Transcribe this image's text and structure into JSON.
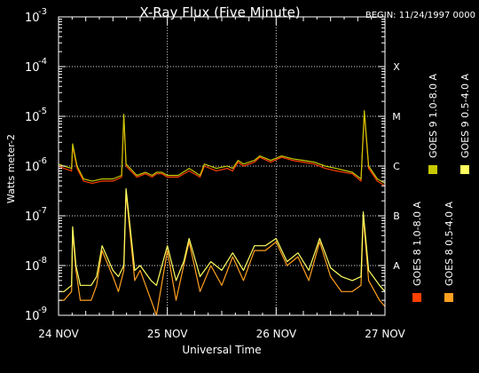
{
  "chart_data": {
    "type": "line",
    "title": "X-Ray Flux (Five Minute)",
    "begin_label": "BEGIN: 11/24/1997 0000",
    "xlabel": "Universal Time",
    "ylabel": "Watts meter-2",
    "x_ticks": [
      "24 NOV",
      "25 NOV",
      "26 NOV",
      "27 NOV"
    ],
    "x_range_days": [
      0,
      3
    ],
    "y_scale": "log",
    "ylim": [
      1e-09,
      0.001
    ],
    "y_tick_labels": [
      {
        "base": "10",
        "exp": "-9"
      },
      {
        "base": "10",
        "exp": "-8"
      },
      {
        "base": "10",
        "exp": "-7"
      },
      {
        "base": "10",
        "exp": "-6"
      },
      {
        "base": "10",
        "exp": "-5"
      },
      {
        "base": "10",
        "exp": "-4"
      },
      {
        "base": "10",
        "exp": "-3"
      }
    ],
    "flare_classes": [
      {
        "label": "A",
        "flux": 1e-08
      },
      {
        "label": "B",
        "flux": 1e-07
      },
      {
        "label": "C",
        "flux": 1e-06
      },
      {
        "label": "M",
        "flux": 1e-05
      },
      {
        "label": "X",
        "flux": 0.0001
      }
    ],
    "grid": true,
    "legend_position": "right, vertical",
    "series": [
      {
        "name": "GOES 8 1.0-8.0 A",
        "color": "#ff4000",
        "band": "long",
        "x": [
          0,
          0.05,
          0.12,
          0.13,
          0.17,
          0.23,
          0.31,
          0.4,
          0.5,
          0.58,
          0.6,
          0.62,
          0.72,
          0.8,
          0.86,
          0.9,
          0.95,
          1.0,
          1.05,
          1.1,
          1.2,
          1.3,
          1.34,
          1.45,
          1.55,
          1.6,
          1.65,
          1.7,
          1.8,
          1.85,
          1.95,
          2.05,
          2.15,
          2.25,
          2.35,
          2.45,
          2.55,
          2.7,
          2.78,
          2.81,
          2.85,
          2.93,
          3.0
        ],
        "y": [
          1e-06,
          9e-07,
          8e-07,
          2.5e-06,
          9e-07,
          5e-07,
          4.5e-07,
          5e-07,
          5e-07,
          6e-07,
          1e-05,
          1e-06,
          6e-07,
          7e-07,
          6e-07,
          7e-07,
          7e-07,
          6e-07,
          6e-07,
          6e-07,
          8e-07,
          6e-07,
          1e-06,
          8e-07,
          9e-07,
          8e-07,
          1.2e-06,
          1e-06,
          1.2e-06,
          1.5e-06,
          1.2e-06,
          1.5e-06,
          1.3e-06,
          1.2e-06,
          1.1e-06,
          9e-07,
          8e-07,
          7e-07,
          5e-07,
          1.2e-05,
          9e-07,
          5e-07,
          4e-07
        ]
      },
      {
        "name": "GOES 8 0.5-4.0 A",
        "color": "#ffa020",
        "band": "short",
        "x": [
          0,
          0.05,
          0.12,
          0.13,
          0.16,
          0.2,
          0.3,
          0.35,
          0.4,
          0.5,
          0.55,
          0.6,
          0.62,
          0.7,
          0.75,
          0.85,
          0.9,
          1.0,
          1.08,
          1.15,
          1.2,
          1.3,
          1.4,
          1.5,
          1.6,
          1.7,
          1.8,
          1.9,
          2.0,
          2.1,
          2.2,
          2.3,
          2.4,
          2.5,
          2.6,
          2.7,
          2.78,
          2.8,
          2.85,
          2.95,
          3.0
        ],
        "y": [
          2e-09,
          2e-09,
          3e-09,
          5e-08,
          8e-09,
          2e-09,
          2e-09,
          4e-09,
          2e-08,
          6e-09,
          3e-09,
          8e-09,
          3e-07,
          5e-09,
          8e-09,
          2e-09,
          1e-09,
          2e-08,
          2e-09,
          1e-08,
          3e-08,
          3e-09,
          1e-08,
          4e-09,
          1.5e-08,
          5e-09,
          2e-08,
          2e-08,
          3e-08,
          1e-08,
          1.5e-08,
          5e-09,
          3e-08,
          6e-09,
          3e-09,
          3e-09,
          4e-09,
          1e-07,
          5e-09,
          2e-09,
          1.5e-09
        ]
      },
      {
        "name": "GOES 9 1.0-8.0 A",
        "color": "#c8c800",
        "band": "long",
        "x": [
          0,
          0.05,
          0.12,
          0.13,
          0.17,
          0.23,
          0.31,
          0.4,
          0.5,
          0.58,
          0.6,
          0.62,
          0.72,
          0.8,
          0.86,
          0.9,
          0.95,
          1.0,
          1.05,
          1.1,
          1.2,
          1.3,
          1.34,
          1.45,
          1.55,
          1.6,
          1.65,
          1.7,
          1.8,
          1.85,
          1.95,
          2.05,
          2.15,
          2.25,
          2.35,
          2.45,
          2.55,
          2.7,
          2.78,
          2.81,
          2.85,
          2.93,
          3.0
        ],
        "y": [
          1.1e-06,
          1e-06,
          9e-07,
          2.8e-06,
          1e-06,
          5.5e-07,
          5e-07,
          5.5e-07,
          5.5e-07,
          6.5e-07,
          1.1e-05,
          1.1e-06,
          6.5e-07,
          7.5e-07,
          6.5e-07,
          7.5e-07,
          7.5e-07,
          6.5e-07,
          6.5e-07,
          6.5e-07,
          9e-07,
          6.5e-07,
          1.1e-06,
          9e-07,
          1e-06,
          9e-07,
          1.3e-06,
          1.1e-06,
          1.3e-06,
          1.6e-06,
          1.3e-06,
          1.6e-06,
          1.4e-06,
          1.3e-06,
          1.2e-06,
          1e-06,
          9e-07,
          7.5e-07,
          5.5e-07,
          1.3e-05,
          1e-06,
          5.5e-07,
          4.5e-07
        ]
      },
      {
        "name": "GOES 9 0.5-4.0 A",
        "color": "#ffff60",
        "band": "short",
        "x": [
          0,
          0.05,
          0.12,
          0.13,
          0.16,
          0.2,
          0.3,
          0.35,
          0.4,
          0.5,
          0.55,
          0.6,
          0.62,
          0.7,
          0.75,
          0.85,
          0.9,
          1.0,
          1.08,
          1.15,
          1.2,
          1.3,
          1.4,
          1.5,
          1.6,
          1.7,
          1.8,
          1.9,
          2.0,
          2.1,
          2.2,
          2.3,
          2.4,
          2.5,
          2.6,
          2.7,
          2.78,
          2.8,
          2.85,
          2.95,
          3.0
        ],
        "y": [
          3e-09,
          3e-09,
          4e-09,
          6e-08,
          1e-08,
          4e-09,
          4e-09,
          6e-09,
          2.5e-08,
          8e-09,
          6e-09,
          1e-08,
          3.5e-07,
          8e-09,
          1e-08,
          5e-09,
          4e-09,
          2.5e-08,
          5e-09,
          1.2e-08,
          3.5e-08,
          6e-09,
          1.2e-08,
          8e-09,
          1.8e-08,
          8e-09,
          2.5e-08,
          2.5e-08,
          3.5e-08,
          1.2e-08,
          1.8e-08,
          8e-09,
          3.5e-08,
          9e-09,
          6e-09,
          5e-09,
          6e-09,
          1.2e-07,
          8e-09,
          4e-09,
          3e-09
        ]
      }
    ]
  }
}
